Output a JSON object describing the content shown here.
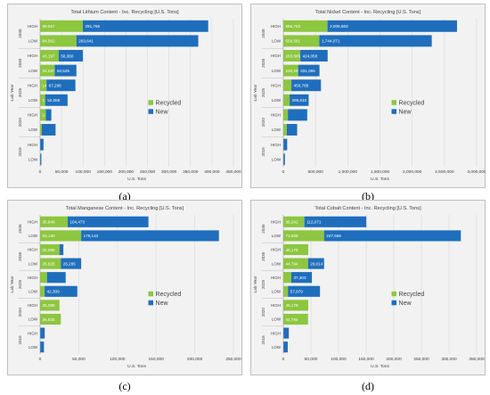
{
  "captions": [
    "(a)",
    "(b)",
    "(c)",
    "(d)"
  ],
  "chart_data": [
    {
      "type": "bar",
      "stacked": true,
      "orientation": "horizontal",
      "title": "Total Lithium Content - Inc. Recycling [U.S. Tons]",
      "xlabel": "U.S. Tons",
      "ylabel": "Lab Year",
      "xlim": [
        0,
        450000
      ],
      "xticks": [
        "0",
        "50,000",
        "100,000",
        "150,000",
        "200,000",
        "250,000",
        "300,000",
        "350,000",
        "400,000",
        "450,000"
      ],
      "xtick_values": [
        0,
        50000,
        100000,
        150000,
        200000,
        250000,
        300000,
        350000,
        400000,
        450000
      ],
      "groups": [
        "2045",
        "2030",
        "2025",
        "2020",
        "2015"
      ],
      "categories": [
        "HIGH",
        "LOW",
        "HIGH",
        "LOW",
        "HIGH",
        "LOW",
        "HIGH",
        "LOW",
        "HIGH",
        "LOW"
      ],
      "series": [
        {
          "name": "Recycled",
          "color": "#8dc63f",
          "values": [
            99557,
            84562,
            43197,
            34037,
            14896,
            11896,
            13197,
            4037,
            0,
            0
          ],
          "labels": [
            "99,557",
            "84,562",
            "43,197",
            "34,037",
            "14,896",
            "11,896",
            "13,197",
            "4,037",
            "",
            ""
          ]
        },
        {
          "name": "New",
          "color": "#1f6ebd",
          "values": [
            291765,
            283641,
            56360,
            50525,
            67298,
            52086,
            13000,
            32000,
            8000,
            3000
          ],
          "labels": [
            "291,765",
            "283,641",
            "56,360",
            "50,525",
            "67,298",
            "52,086",
            "",
            "",
            "",
            ""
          ]
        }
      ],
      "legend_position": "right"
    },
    {
      "type": "bar",
      "stacked": true,
      "orientation": "horizontal",
      "title": "Total Nickel Content - Inc. Recycling [U.S. Tons]",
      "xlabel": "U.S. Tons",
      "ylabel": "Lab Year",
      "xlim": [
        0,
        3000000
      ],
      "xticks": [
        "0",
        "500,000",
        "1,000,000",
        "1,500,000",
        "2,000,000",
        "2,500,000",
        "3,000,000"
      ],
      "xtick_values": [
        0,
        500000,
        1000000,
        1500000,
        2000000,
        2500000,
        3000000
      ],
      "groups": [
        "2045",
        "2030",
        "2025",
        "2020",
        "2015"
      ],
      "categories": [
        "HIGH",
        "LOW",
        "HIGH",
        "LOW",
        "HIGH",
        "LOW",
        "HIGH",
        "LOW",
        "HIGH",
        "LOW"
      ],
      "series": [
        {
          "name": "Recycled",
          "color": "#8dc63f",
          "values": [
            685753,
            559561,
            263695,
            230296,
            125507,
            98000,
            71000,
            55000,
            0,
            0
          ],
          "labels": [
            "685,753",
            "559,561",
            "263,695",
            "230,296",
            "",
            "",
            "",
            "",
            "",
            ""
          ]
        },
        {
          "name": "New",
          "color": "#1f6ebd",
          "values": [
            2009683,
            1744071,
            424058,
            331065,
            458788,
            295610,
            300000,
            160000,
            60000,
            25000
          ],
          "labels": [
            "2,009,683",
            "1,744,071",
            "424,058",
            "331,065",
            "458,788",
            "295,610",
            "",
            "",
            "",
            ""
          ]
        }
      ],
      "legend_position": "right"
    },
    {
      "type": "bar",
      "stacked": true,
      "orientation": "horizontal",
      "title": "Total Manganese Content - Inc. Recycling [U.S. Tons]",
      "xlabel": "U.S. Tons",
      "ylabel": "Lab Year",
      "xlim": [
        0,
        250000
      ],
      "xticks": [
        "0",
        "50,000",
        "100,000",
        "150,000",
        "200,000",
        "250,000"
      ],
      "xtick_values": [
        0,
        50000,
        100000,
        150000,
        200000,
        250000
      ],
      "groups": [
        "2045",
        "2030",
        "2025",
        "2020",
        "2015"
      ],
      "categories": [
        "HIGH",
        "LOW",
        "HIGH",
        "LOW",
        "HIGH",
        "LOW",
        "HIGH",
        "LOW",
        "HIGH",
        "LOW"
      ],
      "series": [
        {
          "name": "Recycled",
          "color": "#8dc63f",
          "values": [
            35649,
            53130,
            25099,
            26825,
            8851,
            5851,
            25099,
            26825,
            0,
            0
          ],
          "labels": [
            "35,649",
            "53,130",
            "25,099",
            "26,825",
            "",
            "",
            "25,099",
            "26,825",
            "",
            ""
          ]
        },
        {
          "name": "New",
          "color": "#1f6ebd",
          "values": [
            104473,
            178143,
            5000,
            26285,
            24247,
            42309,
            0,
            0,
            6000,
            5000
          ],
          "labels": [
            "104,473",
            "178,143",
            "",
            "26,285",
            "",
            "42,309",
            "",
            "",
            "",
            ""
          ]
        }
      ],
      "legend_position": "right"
    },
    {
      "type": "bar",
      "stacked": true,
      "orientation": "horizontal",
      "title": "Total Cobalt Content - Inc. Recycling [U.S. Tons]",
      "xlabel": "U.S. Tons",
      "ylabel": "Lab Year",
      "xlim": [
        0,
        350000
      ],
      "xticks": [
        "0",
        "50,000",
        "100,000",
        "150,000",
        "200,000",
        "250,000",
        "300,000",
        "350,000"
      ],
      "xtick_values": [
        0,
        50000,
        100000,
        150000,
        200000,
        250000,
        300000,
        350000
      ],
      "groups": [
        "2045",
        "2030",
        "2025",
        "2020",
        "2015"
      ],
      "categories": [
        "HIGH",
        "LOW",
        "HIGH",
        "LOW",
        "HIGH",
        "LOW",
        "HIGH",
        "LOW",
        "HIGH",
        "LOW"
      ],
      "series": [
        {
          "name": "Recycled",
          "color": "#8dc63f",
          "values": [
            38241,
            73808,
            45179,
            44794,
            14464,
            8444,
            45179,
            44794,
            0,
            0
          ],
          "labels": [
            "38,241",
            "73,808",
            "45,179",
            "44,794",
            "",
            "",
            "45,179",
            "44,794",
            "",
            ""
          ]
        },
        {
          "name": "New",
          "color": "#1f6ebd",
          "values": [
            112071,
            247569,
            0,
            29014,
            37303,
            57979,
            0,
            0,
            10000,
            8000
          ],
          "labels": [
            "112,071",
            "247,569",
            "",
            "29,014",
            "37,303",
            "57,979",
            "",
            "",
            "",
            ""
          ]
        }
      ],
      "legend_position": "right"
    }
  ]
}
